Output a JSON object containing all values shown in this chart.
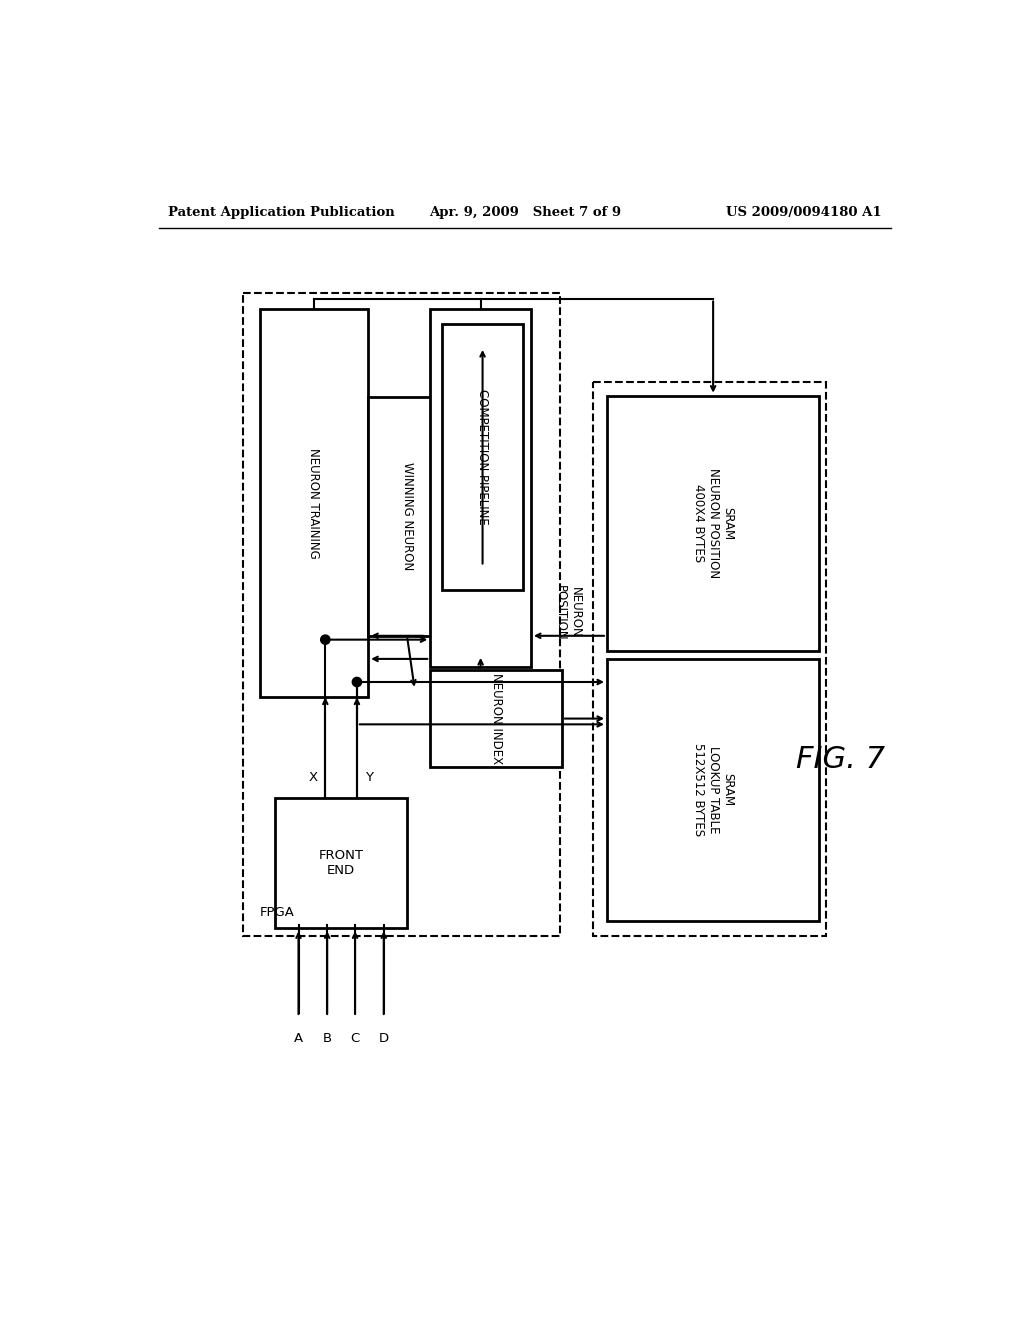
{
  "bg_color": "#ffffff",
  "text_color": "#000000",
  "header_left": "Patent Application Publication",
  "header_center": "Apr. 9, 2009   Sheet 7 of 9",
  "header_right": "US 2009/0094180 A1",
  "fig_label": "FIG. 7",
  "lw_thick": 2.0,
  "lw_thin": 1.5,
  "lw_dash": 1.5,
  "fs_label": 8.5,
  "fs_header": 9.5,
  "fs_fig": 22
}
